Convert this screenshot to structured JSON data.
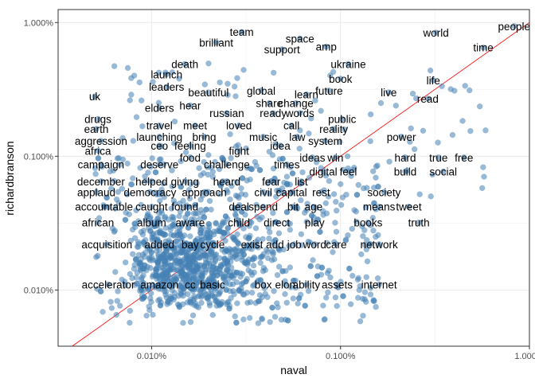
{
  "chart_data": {
    "type": "scatter",
    "xlabel": "naval",
    "ylabel": "richardbranson",
    "x_scale": "log10",
    "y_scale": "log10",
    "xlim": [
      3.2e-05,
      0.01
    ],
    "ylim": [
      3.8e-05,
      0.0125
    ],
    "x_ticks": [
      {
        "value": 0.0001,
        "label": "0.010%"
      },
      {
        "value": 0.001,
        "label": "0.100%"
      },
      {
        "value": 0.01,
        "label": "1.000%"
      }
    ],
    "y_ticks": [
      {
        "value": 0.0001,
        "label": "0.010%"
      },
      {
        "value": 0.001,
        "label": "0.100%"
      },
      {
        "value": 0.01,
        "label": "1.000%"
      }
    ],
    "grid": true,
    "point_color": "#4682b4",
    "line_color": "#ff0000",
    "reference_line": "y = x",
    "labeled_points": [
      {
        "word": "people",
        "x": 0.0083,
        "y": 0.0094
      },
      {
        "word": "world",
        "x": 0.0032,
        "y": 0.0084
      },
      {
        "word": "time",
        "x": 0.0057,
        "y": 0.0065
      },
      {
        "word": "team",
        "x": 0.0003,
        "y": 0.0085
      },
      {
        "word": "space",
        "x": 0.00061,
        "y": 0.0076
      },
      {
        "word": "brilliant",
        "x": 0.00022,
        "y": 0.0071
      },
      {
        "word": "amp",
        "x": 0.00084,
        "y": 0.0066
      },
      {
        "word": "support",
        "x": 0.00049,
        "y": 0.0063
      },
      {
        "word": "ukraine",
        "x": 0.0011,
        "y": 0.0049
      },
      {
        "word": "death",
        "x": 0.00015,
        "y": 0.0049
      },
      {
        "word": "launch",
        "x": 0.00012,
        "y": 0.0041
      },
      {
        "word": "book",
        "x": 0.001,
        "y": 0.0038
      },
      {
        "word": "life",
        "x": 0.0031,
        "y": 0.0037
      },
      {
        "word": "leaders",
        "x": 0.00012,
        "y": 0.0033
      },
      {
        "word": "future",
        "x": 0.00087,
        "y": 0.0031
      },
      {
        "word": "global",
        "x": 0.00038,
        "y": 0.0031
      },
      {
        "word": "live",
        "x": 0.0018,
        "y": 0.003
      },
      {
        "word": "beautiful",
        "x": 0.0002,
        "y": 0.003
      },
      {
        "word": "learn",
        "x": 0.00066,
        "y": 0.0029
      },
      {
        "word": "uk",
        "x": 5e-05,
        "y": 0.0028
      },
      {
        "word": "read",
        "x": 0.0029,
        "y": 0.0027
      },
      {
        "word": "share",
        "x": 0.00042,
        "y": 0.0025
      },
      {
        "word": "change",
        "x": 0.00058,
        "y": 0.0025
      },
      {
        "word": "hear",
        "x": 0.00016,
        "y": 0.0024
      },
      {
        "word": "elders",
        "x": 0.00011,
        "y": 0.0023
      },
      {
        "word": "russian",
        "x": 0.00025,
        "y": 0.0021
      },
      {
        "word": "ready",
        "x": 0.00044,
        "y": 0.0021
      },
      {
        "word": "words",
        "x": 0.00061,
        "y": 0.0021
      },
      {
        "word": "drugs",
        "x": 5.2e-05,
        "y": 0.0019
      },
      {
        "word": "public",
        "x": 0.00102,
        "y": 0.0019
      },
      {
        "word": "earth",
        "x": 5.1e-05,
        "y": 0.0016
      },
      {
        "word": "travel",
        "x": 0.00011,
        "y": 0.0017
      },
      {
        "word": "meet",
        "x": 0.00017,
        "y": 0.0017
      },
      {
        "word": "loved",
        "x": 0.00029,
        "y": 0.0017
      },
      {
        "word": "call",
        "x": 0.00055,
        "y": 0.0017
      },
      {
        "word": "reality",
        "x": 0.00092,
        "y": 0.0016
      },
      {
        "word": "launching",
        "x": 0.00011,
        "y": 0.0014
      },
      {
        "word": "bring",
        "x": 0.00019,
        "y": 0.0014
      },
      {
        "word": "music",
        "x": 0.00039,
        "y": 0.0014
      },
      {
        "word": "law",
        "x": 0.00059,
        "y": 0.0014
      },
      {
        "word": "power",
        "x": 0.0021,
        "y": 0.0014
      },
      {
        "word": "aggression",
        "x": 5.4e-05,
        "y": 0.0013
      },
      {
        "word": "system",
        "x": 0.00083,
        "y": 0.0013
      },
      {
        "word": "ceo",
        "x": 0.00011,
        "y": 0.0012
      },
      {
        "word": "feeling",
        "x": 0.00016,
        "y": 0.0012
      },
      {
        "word": "fight",
        "x": 0.00029,
        "y": 0.0011
      },
      {
        "word": "idea",
        "x": 0.00048,
        "y": 0.0012
      },
      {
        "word": "africa",
        "x": 5.2e-05,
        "y": 0.0011
      },
      {
        "word": "food",
        "x": 0.00016,
        "y": 0.00098
      },
      {
        "word": "ideas",
        "x": 0.00071,
        "y": 0.00098
      },
      {
        "word": "win",
        "x": 0.00094,
        "y": 0.00098
      },
      {
        "word": "hard",
        "x": 0.0022,
        "y": 0.00098
      },
      {
        "word": "true",
        "x": 0.0033,
        "y": 0.00098
      },
      {
        "word": "free",
        "x": 0.0045,
        "y": 0.00098
      },
      {
        "word": "campaign",
        "x": 5.4e-05,
        "y": 0.00087
      },
      {
        "word": "deserve",
        "x": 0.00011,
        "y": 0.00087
      },
      {
        "word": "challenge",
        "x": 0.00025,
        "y": 0.00087
      },
      {
        "word": "times",
        "x": 0.00052,
        "y": 0.00087
      },
      {
        "word": "digital",
        "x": 0.00081,
        "y": 0.00077
      },
      {
        "word": "feel",
        "x": 0.0011,
        "y": 0.00077
      },
      {
        "word": "build",
        "x": 0.0022,
        "y": 0.00077
      },
      {
        "word": "social",
        "x": 0.0035,
        "y": 0.00077
      },
      {
        "word": "december",
        "x": 5.4e-05,
        "y": 0.00065
      },
      {
        "word": "helped",
        "x": 0.0001,
        "y": 0.00065
      },
      {
        "word": "giving",
        "x": 0.00015,
        "y": 0.00065
      },
      {
        "word": "heard",
        "x": 0.00025,
        "y": 0.00065
      },
      {
        "word": "fear",
        "x": 0.00043,
        "y": 0.00065
      },
      {
        "word": "list",
        "x": 0.00062,
        "y": 0.00065
      },
      {
        "word": "applaud",
        "x": 5.1e-05,
        "y": 0.00054
      },
      {
        "word": "democracy",
        "x": 9.8e-05,
        "y": 0.00054
      },
      {
        "word": "approach",
        "x": 0.00019,
        "y": 0.00054
      },
      {
        "word": "civil",
        "x": 0.00039,
        "y": 0.00054
      },
      {
        "word": "capital",
        "x": 0.00055,
        "y": 0.00054
      },
      {
        "word": "rest",
        "x": 0.00079,
        "y": 0.00054
      },
      {
        "word": "society",
        "x": 0.0017,
        "y": 0.00054
      },
      {
        "word": "accountable",
        "x": 5.6e-05,
        "y": 0.00042
      },
      {
        "word": "caught",
        "x": 0.0001,
        "y": 0.00042
      },
      {
        "word": "found",
        "x": 0.00015,
        "y": 0.00042
      },
      {
        "word": "deal",
        "x": 0.00029,
        "y": 0.00042
      },
      {
        "word": "spend",
        "x": 0.00039,
        "y": 0.00042
      },
      {
        "word": "bit",
        "x": 0.00056,
        "y": 0.00042
      },
      {
        "word": "age",
        "x": 0.00072,
        "y": 0.00042
      },
      {
        "word": "means",
        "x": 0.0016,
        "y": 0.00042
      },
      {
        "word": "tweet",
        "x": 0.0023,
        "y": 0.00042
      },
      {
        "word": "african",
        "x": 5.2e-05,
        "y": 0.00032
      },
      {
        "word": "album",
        "x": 0.0001,
        "y": 0.00032
      },
      {
        "word": "aware",
        "x": 0.00016,
        "y": 0.00032
      },
      {
        "word": "child",
        "x": 0.00029,
        "y": 0.00032
      },
      {
        "word": "direct",
        "x": 0.00046,
        "y": 0.00032
      },
      {
        "word": "play",
        "x": 0.00073,
        "y": 0.00032
      },
      {
        "word": "books",
        "x": 0.0014,
        "y": 0.00032
      },
      {
        "word": "truth",
        "x": 0.0026,
        "y": 0.00032
      },
      {
        "word": "acquisition",
        "x": 5.8e-05,
        "y": 0.00022
      },
      {
        "word": "added",
        "x": 0.00011,
        "y": 0.00022
      },
      {
        "word": "bay",
        "x": 0.00016,
        "y": 0.00022
      },
      {
        "word": "cycle",
        "x": 0.00021,
        "y": 0.00022
      },
      {
        "word": "exist",
        "x": 0.00034,
        "y": 0.00022
      },
      {
        "word": "add",
        "x": 0.00045,
        "y": 0.00022
      },
      {
        "word": "job",
        "x": 0.00057,
        "y": 0.00022
      },
      {
        "word": "word",
        "x": 0.00073,
        "y": 0.00022
      },
      {
        "word": "care",
        "x": 0.00095,
        "y": 0.00022
      },
      {
        "word": "network",
        "x": 0.0016,
        "y": 0.00022
      },
      {
        "word": "accelerator",
        "x": 5.9e-05,
        "y": 0.00011
      },
      {
        "word": "amazon",
        "x": 0.00011,
        "y": 0.00011
      },
      {
        "word": "cc",
        "x": 0.00016,
        "y": 0.00011
      },
      {
        "word": "basic",
        "x": 0.00021,
        "y": 0.00011
      },
      {
        "word": "box",
        "x": 0.00039,
        "y": 0.00011
      },
      {
        "word": "elon",
        "x": 0.00051,
        "y": 0.00011
      },
      {
        "word": "ability",
        "x": 0.00066,
        "y": 0.00011
      },
      {
        "word": "assets",
        "x": 0.00096,
        "y": 0.00011
      },
      {
        "word": "internet",
        "x": 0.0016,
        "y": 0.00011
      }
    ]
  }
}
